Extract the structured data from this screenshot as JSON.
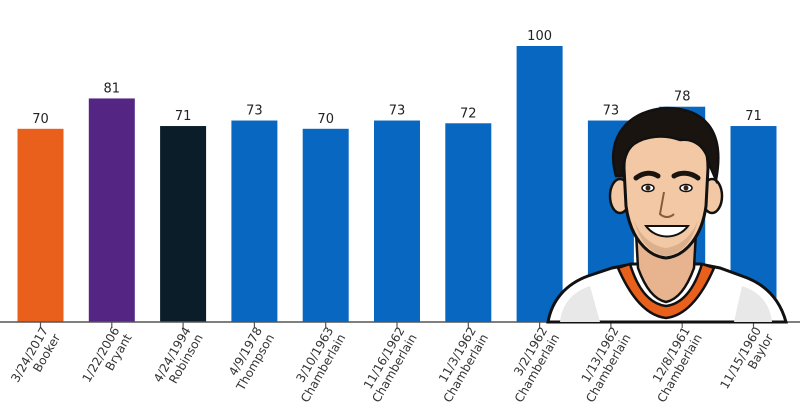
{
  "chart_data": {
    "type": "bar",
    "categories": [
      {
        "date": "3/24/2017",
        "name": "Booker"
      },
      {
        "date": "1/22/2006",
        "name": "Bryant"
      },
      {
        "date": "4/24/1994",
        "name": "Robinson"
      },
      {
        "date": "4/9/1978",
        "name": "Thompson"
      },
      {
        "date": "3/10/1963",
        "name": "Chamberlain"
      },
      {
        "date": "11/16/1962",
        "name": "Chamberlain"
      },
      {
        "date": "11/3/1962",
        "name": "Chamberlain"
      },
      {
        "date": "3/2/1962",
        "name": "Chamberlain"
      },
      {
        "date": "1/13/1962",
        "name": "Chamberlain"
      },
      {
        "date": "12/8/1961",
        "name": "Chamberlain"
      },
      {
        "date": "11/15/1960",
        "name": "Baylor"
      }
    ],
    "values": [
      70,
      81,
      71,
      73,
      70,
      73,
      72,
      100,
      73,
      78,
      71
    ],
    "colors": [
      "#e8601c",
      "#552583",
      "#0b1d28",
      "#0867c0",
      "#0867c0",
      "#0867c0",
      "#0867c0",
      "#0867c0",
      "#0867c0",
      "#0867c0",
      "#0867c0"
    ],
    "ylim": [
      0,
      100
    ],
    "show_data_labels": true,
    "grid": false,
    "title": "",
    "xlabel": "",
    "ylabel": ""
  },
  "illustration": {
    "icon": "player-portrait-icon",
    "jersey_color": "#e8601c",
    "skin_color": "#f3c9a5"
  }
}
